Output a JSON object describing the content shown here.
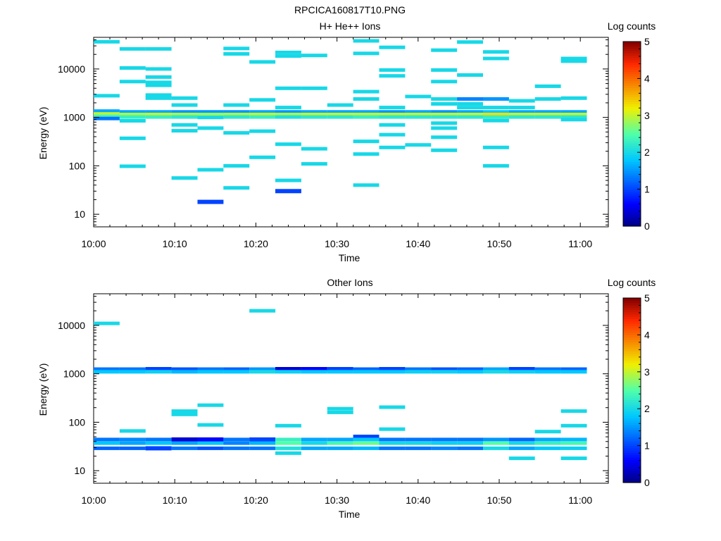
{
  "title": "RPCICA160817T10.PNG",
  "colorbar": {
    "label": "Log counts",
    "ticks": [
      "0",
      "1",
      "2",
      "3",
      "4",
      "5"
    ],
    "min": 0,
    "max": 5
  },
  "chart_data": [
    {
      "type": "heatmap",
      "title": "H+ He++ Ions",
      "xlabel": "Time",
      "ylabel": "Energy (eV)",
      "x_ticks": [
        "10:00",
        "10:10",
        "10:20",
        "10:30",
        "10:40",
        "10:50",
        "11:00"
      ],
      "y_ticks": [
        "10",
        "100",
        "1000",
        "10000"
      ],
      "x_range_min": [
        0,
        64
      ],
      "y_range_eV": [
        5.5,
        45000
      ],
      "y_scale": "log",
      "time_bin_min": 3.2,
      "cells": [
        [
          0,
          36500,
          2
        ],
        [
          0,
          2800,
          2
        ],
        [
          0,
          1350,
          1.6
        ],
        [
          0,
          1180,
          3.0
        ],
        [
          0,
          1050,
          2.4
        ],
        [
          0,
          950,
          1.3
        ],
        [
          3.2,
          26000,
          2
        ],
        [
          3.2,
          10500,
          2
        ],
        [
          3.2,
          5500,
          2
        ],
        [
          3.2,
          1300,
          1.6
        ],
        [
          3.2,
          1150,
          2.9
        ],
        [
          3.2,
          1020,
          2.3
        ],
        [
          3.2,
          850,
          2
        ],
        [
          3.2,
          370,
          2
        ],
        [
          3.2,
          98,
          2
        ],
        [
          6.4,
          26000,
          2
        ],
        [
          6.4,
          10000,
          2
        ],
        [
          6.4,
          6800,
          2
        ],
        [
          6.4,
          5300,
          2
        ],
        [
          6.4,
          4600,
          2
        ],
        [
          6.4,
          2900,
          2
        ],
        [
          6.4,
          2500,
          2
        ],
        [
          6.4,
          1300,
          1.6
        ],
        [
          6.4,
          1150,
          3.0
        ],
        [
          6.4,
          1020,
          2.3
        ],
        [
          9.6,
          2500,
          2
        ],
        [
          9.6,
          1800,
          2
        ],
        [
          9.6,
          1300,
          1.5
        ],
        [
          9.6,
          1150,
          2.9
        ],
        [
          9.6,
          1020,
          2.2
        ],
        [
          9.6,
          700,
          2
        ],
        [
          9.6,
          530,
          2
        ],
        [
          9.6,
          56,
          2
        ],
        [
          12.8,
          1300,
          1.5
        ],
        [
          12.8,
          1150,
          2.8
        ],
        [
          12.8,
          1000,
          2.0
        ],
        [
          12.8,
          600,
          2
        ],
        [
          12.8,
          83,
          2
        ],
        [
          12.8,
          18,
          1
        ],
        [
          16.0,
          26500,
          2
        ],
        [
          16.0,
          20500,
          2
        ],
        [
          16.0,
          1800,
          2
        ],
        [
          16.0,
          1300,
          1.5
        ],
        [
          16.0,
          1150,
          2.9
        ],
        [
          16.0,
          1020,
          2.2
        ],
        [
          16.0,
          480,
          2
        ],
        [
          16.0,
          100,
          2
        ],
        [
          16.0,
          35,
          2
        ],
        [
          19.2,
          14000,
          2
        ],
        [
          19.2,
          2300,
          2
        ],
        [
          19.2,
          1300,
          1.6
        ],
        [
          19.2,
          1150,
          3.0
        ],
        [
          19.2,
          1020,
          2.3
        ],
        [
          19.2,
          520,
          2
        ],
        [
          19.2,
          150,
          2
        ],
        [
          22.4,
          22000,
          2
        ],
        [
          22.4,
          18500,
          2
        ],
        [
          22.4,
          4000,
          2
        ],
        [
          22.4,
          1600,
          2
        ],
        [
          22.4,
          1300,
          1.5
        ],
        [
          22.4,
          1150,
          2.9
        ],
        [
          22.4,
          1020,
          2.1
        ],
        [
          22.4,
          280,
          2
        ],
        [
          22.4,
          50,
          2
        ],
        [
          22.4,
          30,
          1
        ],
        [
          25.6,
          19000,
          2
        ],
        [
          25.6,
          4000,
          2
        ],
        [
          25.6,
          1300,
          1.6
        ],
        [
          25.6,
          1150,
          3.0
        ],
        [
          25.6,
          1020,
          2.2
        ],
        [
          25.6,
          225,
          2
        ],
        [
          25.6,
          110,
          2
        ],
        [
          28.8,
          1800,
          2
        ],
        [
          28.8,
          1300,
          1.6
        ],
        [
          28.8,
          1150,
          3.0
        ],
        [
          28.8,
          1020,
          2.2
        ],
        [
          32.0,
          38000,
          2
        ],
        [
          32.0,
          21000,
          2
        ],
        [
          32.0,
          3400,
          2
        ],
        [
          32.0,
          2400,
          2
        ],
        [
          32.0,
          1300,
          1.6
        ],
        [
          32.0,
          1150,
          3.0
        ],
        [
          32.0,
          1020,
          2.3
        ],
        [
          32.0,
          320,
          2
        ],
        [
          32.0,
          175,
          2
        ],
        [
          32.0,
          40,
          2
        ],
        [
          35.2,
          28000,
          2
        ],
        [
          35.2,
          9500,
          2
        ],
        [
          35.2,
          7200,
          2
        ],
        [
          35.2,
          1600,
          2
        ],
        [
          35.2,
          1300,
          1.5
        ],
        [
          35.2,
          1150,
          3.0
        ],
        [
          35.2,
          1020,
          2.2
        ],
        [
          35.2,
          700,
          2
        ],
        [
          35.2,
          440,
          2
        ],
        [
          35.2,
          240,
          2
        ],
        [
          38.4,
          2700,
          2
        ],
        [
          38.4,
          1300,
          1.6
        ],
        [
          38.4,
          1150,
          3.0
        ],
        [
          38.4,
          1020,
          2.2
        ],
        [
          38.4,
          270,
          2
        ],
        [
          41.6,
          24500,
          2
        ],
        [
          41.6,
          9500,
          2
        ],
        [
          41.6,
          5500,
          2
        ],
        [
          41.6,
          2400,
          2
        ],
        [
          41.6,
          1900,
          2
        ],
        [
          41.6,
          1300,
          1.5
        ],
        [
          41.6,
          1150,
          3.0
        ],
        [
          41.6,
          1020,
          2.2
        ],
        [
          41.6,
          760,
          2
        ],
        [
          41.6,
          600,
          2
        ],
        [
          41.6,
          390,
          2
        ],
        [
          41.6,
          210,
          2
        ],
        [
          44.8,
          36000,
          2
        ],
        [
          44.8,
          7500,
          2
        ],
        [
          44.8,
          2400,
          1.4
        ],
        [
          44.8,
          1900,
          2
        ],
        [
          44.8,
          1600,
          2
        ],
        [
          44.8,
          1300,
          1.6
        ],
        [
          44.8,
          1150,
          3.0
        ],
        [
          44.8,
          1020,
          2.2
        ],
        [
          48.0,
          22500,
          2
        ],
        [
          48.0,
          16500,
          2
        ],
        [
          48.0,
          2400,
          1.5
        ],
        [
          48.0,
          1600,
          2
        ],
        [
          48.0,
          1300,
          1.8
        ],
        [
          48.0,
          1150,
          3.3
        ],
        [
          48.0,
          1020,
          2.3
        ],
        [
          48.0,
          860,
          2
        ],
        [
          48.0,
          240,
          2
        ],
        [
          48.0,
          100,
          2
        ],
        [
          51.2,
          2200,
          2
        ],
        [
          51.2,
          1600,
          2
        ],
        [
          51.2,
          1300,
          1.6
        ],
        [
          51.2,
          1150,
          3.0
        ],
        [
          51.2,
          1020,
          2.2
        ],
        [
          54.4,
          4400,
          2
        ],
        [
          54.4,
          2400,
          2
        ],
        [
          54.4,
          1300,
          1.6
        ],
        [
          54.4,
          1150,
          3.0
        ],
        [
          54.4,
          1020,
          2.2
        ],
        [
          57.6,
          16500,
          2
        ],
        [
          57.6,
          14500,
          2
        ],
        [
          57.6,
          2500,
          2
        ],
        [
          57.6,
          1300,
          1.6
        ],
        [
          57.6,
          1150,
          3.0
        ],
        [
          57.6,
          1020,
          2.2
        ],
        [
          57.6,
          900,
          2
        ]
      ]
    },
    {
      "type": "heatmap",
      "title": "Other Ions",
      "xlabel": "Time",
      "ylabel": "Energy (eV)",
      "x_ticks": [
        "10:00",
        "10:10",
        "10:20",
        "10:30",
        "10:40",
        "10:50",
        "11:00"
      ],
      "y_ticks": [
        "10",
        "100",
        "1000",
        "10000"
      ],
      "x_range_min": [
        0,
        64
      ],
      "y_range_eV": [
        5.5,
        45000
      ],
      "y_scale": "log",
      "time_bin_min": 3.2,
      "cells": [
        [
          0,
          11000,
          2
        ],
        [
          0,
          1250,
          1.3
        ],
        [
          0,
          1100,
          1.8
        ],
        [
          0,
          44,
          1.3
        ],
        [
          0,
          37,
          1.8
        ],
        [
          0,
          29,
          1.2
        ],
        [
          3.2,
          1250,
          1.3
        ],
        [
          3.2,
          1100,
          1.8
        ],
        [
          3.2,
          66,
          2
        ],
        [
          3.2,
          44,
          1.4
        ],
        [
          3.2,
          37,
          1.6
        ],
        [
          3.2,
          29,
          1.2
        ],
        [
          6.4,
          1250,
          1.0
        ],
        [
          6.4,
          1100,
          1.9
        ],
        [
          6.4,
          44,
          1.3
        ],
        [
          6.4,
          37,
          1.8
        ],
        [
          6.4,
          29,
          1.0
        ],
        [
          9.6,
          1250,
          1.1
        ],
        [
          9.6,
          1100,
          1.7
        ],
        [
          9.6,
          170,
          2
        ],
        [
          9.6,
          145,
          2
        ],
        [
          9.6,
          44,
          0.4
        ],
        [
          9.6,
          37,
          1.6
        ],
        [
          9.6,
          29,
          1.3
        ],
        [
          12.8,
          1250,
          1.3
        ],
        [
          12.8,
          1100,
          1.8
        ],
        [
          12.8,
          225,
          2
        ],
        [
          12.8,
          88,
          2
        ],
        [
          12.8,
          44,
          0.6
        ],
        [
          12.8,
          37,
          1.8
        ],
        [
          12.8,
          29,
          1.1
        ],
        [
          16.0,
          1250,
          1.2
        ],
        [
          16.0,
          1100,
          1.8
        ],
        [
          16.0,
          44,
          1.3
        ],
        [
          16.0,
          37,
          1.4
        ],
        [
          16.0,
          29,
          1.3
        ],
        [
          19.2,
          20000,
          2
        ],
        [
          19.2,
          1250,
          1.5
        ],
        [
          19.2,
          1100,
          2.0
        ],
        [
          19.2,
          44,
          1.0
        ],
        [
          19.2,
          37,
          1.7
        ],
        [
          19.2,
          29,
          1.3
        ],
        [
          22.4,
          1250,
          0.4
        ],
        [
          22.4,
          1100,
          1.9
        ],
        [
          22.4,
          85,
          2
        ],
        [
          22.4,
          44,
          2.3
        ],
        [
          22.4,
          37,
          2.5
        ],
        [
          22.4,
          29,
          2.1
        ],
        [
          22.4,
          23,
          2
        ],
        [
          25.6,
          1250,
          0.6
        ],
        [
          25.6,
          1100,
          1.8
        ],
        [
          25.6,
          44,
          1.6
        ],
        [
          25.6,
          37,
          2.0
        ],
        [
          25.6,
          29,
          1.6
        ],
        [
          28.8,
          1250,
          1.0
        ],
        [
          28.8,
          1100,
          1.8
        ],
        [
          28.8,
          190,
          2
        ],
        [
          28.8,
          160,
          2
        ],
        [
          28.8,
          44,
          1.6
        ],
        [
          28.8,
          37,
          2.4
        ],
        [
          28.8,
          29,
          1.6
        ],
        [
          32.0,
          1250,
          1.2
        ],
        [
          32.0,
          1100,
          1.8
        ],
        [
          32.0,
          50,
          1.0
        ],
        [
          32.0,
          44,
          1.8
        ],
        [
          32.0,
          37,
          2.6
        ],
        [
          32.0,
          29,
          1.7
        ],
        [
          35.2,
          1250,
          1.0
        ],
        [
          35.2,
          1100,
          1.8
        ],
        [
          35.2,
          205,
          2
        ],
        [
          35.2,
          72,
          2
        ],
        [
          35.2,
          44,
          1.3
        ],
        [
          35.2,
          37,
          2.0
        ],
        [
          35.2,
          29,
          1.3
        ],
        [
          38.4,
          1250,
          1.3
        ],
        [
          38.4,
          1100,
          1.9
        ],
        [
          38.4,
          44,
          1.3
        ],
        [
          38.4,
          37,
          2.0
        ],
        [
          38.4,
          29,
          1.3
        ],
        [
          41.6,
          1250,
          1.1
        ],
        [
          41.6,
          1100,
          1.9
        ],
        [
          41.6,
          44,
          1.3
        ],
        [
          41.6,
          37,
          1.9
        ],
        [
          41.6,
          29,
          1.4
        ],
        [
          44.8,
          1250,
          1.2
        ],
        [
          44.8,
          1100,
          1.8
        ],
        [
          44.8,
          44,
          1.3
        ],
        [
          44.8,
          37,
          1.9
        ],
        [
          44.8,
          29,
          1.3
        ],
        [
          48.0,
          1250,
          1.6
        ],
        [
          48.0,
          1100,
          2.0
        ],
        [
          48.0,
          44,
          1.5
        ],
        [
          48.0,
          37,
          2.5
        ],
        [
          48.0,
          29,
          2.0
        ],
        [
          51.2,
          1250,
          1.0
        ],
        [
          51.2,
          1100,
          1.9
        ],
        [
          51.2,
          44,
          1.2
        ],
        [
          51.2,
          37,
          2.0
        ],
        [
          51.2,
          29,
          1.6
        ],
        [
          51.2,
          18,
          2
        ],
        [
          54.4,
          1250,
          1.3
        ],
        [
          54.4,
          1100,
          1.8
        ],
        [
          54.4,
          64,
          2
        ],
        [
          54.4,
          44,
          1.6
        ],
        [
          54.4,
          37,
          2.3
        ],
        [
          54.4,
          29,
          1.8
        ],
        [
          57.6,
          1250,
          1.2
        ],
        [
          57.6,
          1100,
          1.8
        ],
        [
          57.6,
          170,
          2
        ],
        [
          57.6,
          85,
          2
        ],
        [
          57.6,
          44,
          1.7
        ],
        [
          57.6,
          37,
          2.4
        ],
        [
          57.6,
          29,
          1.9
        ],
        [
          57.6,
          18,
          2
        ]
      ]
    }
  ]
}
